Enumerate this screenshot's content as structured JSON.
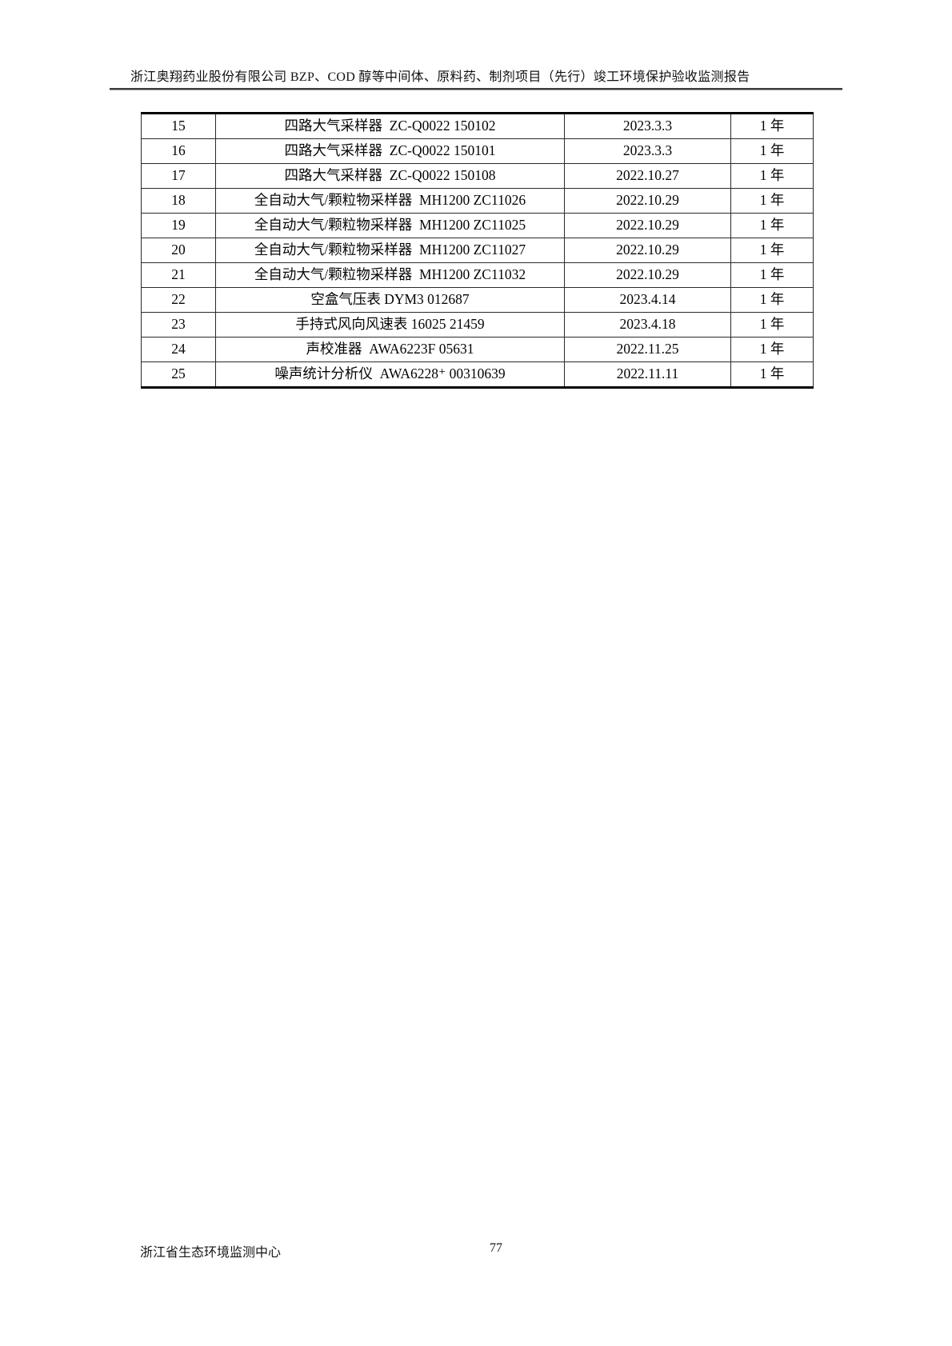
{
  "header": {
    "title": "浙江奥翔药业股份有限公司 BZP、COD 醇等中间体、原料药、制剂项目（先行）竣工环境保护验收监测报告"
  },
  "table": {
    "rows": [
      {
        "no": "15",
        "name": "四路大气采样器  ZC-Q0022 150102",
        "date": "2023.3.3",
        "validity": "1 年"
      },
      {
        "no": "16",
        "name": "四路大气采样器  ZC-Q0022 150101",
        "date": "2023.3.3",
        "validity": "1 年"
      },
      {
        "no": "17",
        "name": "四路大气采样器  ZC-Q0022 150108",
        "date": "2022.10.27",
        "validity": "1 年"
      },
      {
        "no": "18",
        "name": "全自动大气/颗粒物采样器  MH1200 ZC11026",
        "date": "2022.10.29",
        "validity": "1 年"
      },
      {
        "no": "19",
        "name": "全自动大气/颗粒物采样器  MH1200 ZC11025",
        "date": "2022.10.29",
        "validity": "1 年"
      },
      {
        "no": "20",
        "name": "全自动大气/颗粒物采样器  MH1200 ZC11027",
        "date": "2022.10.29",
        "validity": "1 年"
      },
      {
        "no": "21",
        "name": "全自动大气/颗粒物采样器  MH1200 ZC11032",
        "date": "2022.10.29",
        "validity": "1 年"
      },
      {
        "no": "22",
        "name": "空盒气压表 DYM3 012687",
        "date": "2023.4.14",
        "validity": "1 年"
      },
      {
        "no": "23",
        "name": "手持式风向风速表 16025 21459",
        "date": "2023.4.18",
        "validity": "1 年"
      },
      {
        "no": "24",
        "name": "声校准器  AWA6223F 05631",
        "date": "2022.11.25",
        "validity": "1 年"
      },
      {
        "no": "25",
        "name": "噪声统计分析仪  AWA6228⁺ 00310639",
        "date": "2022.11.11",
        "validity": "1 年"
      }
    ]
  },
  "footer": {
    "organization": "浙江省生态环境监测中心",
    "page_number": "77"
  },
  "colors": {
    "text": "#000000",
    "border": "#2a2a2a",
    "rule": "#3c3c3c",
    "background": "#ffffff"
  }
}
